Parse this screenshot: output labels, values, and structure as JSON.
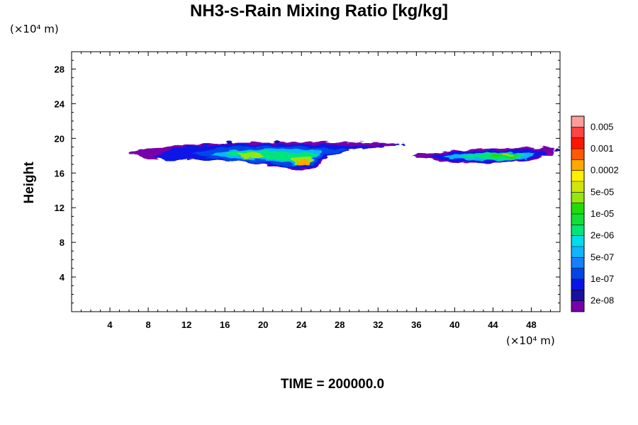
{
  "chart_data": {
    "type": "heatmap",
    "title": "NH3-s-Rain Mixing Ratio [kg/kg]",
    "xunit": "(×10⁴ m)",
    "yunit": "(×10⁴ m)",
    "ylabel": "Height",
    "footer": "TIME = 200000.0",
    "xlim": [
      0,
      51
    ],
    "ylim": [
      0,
      30
    ],
    "xticks": [
      4,
      8,
      12,
      16,
      20,
      24,
      28,
      32,
      36,
      40,
      44,
      48
    ],
    "yticks": [
      4,
      8,
      12,
      16,
      20,
      24,
      28
    ],
    "colorbar": {
      "colors": [
        "#7700aa",
        "#1a10a0",
        "#0a14e6",
        "#0046e6",
        "#1680ff",
        "#10b4ff",
        "#00ddea",
        "#00e57a",
        "#12df36",
        "#22dc0a",
        "#96e610",
        "#d0e60a",
        "#fff000",
        "#ffa800",
        "#ff5a00",
        "#ff1600",
        "#ff4444",
        "#ff9d9d"
      ],
      "labels": [
        "2e-08",
        "1e-07",
        "5e-07",
        "2e-06",
        "1e-05",
        "5e-05",
        "0.0002",
        "0.001",
        "0.005"
      ]
    },
    "regions": [
      {
        "name": "left-cloud",
        "x_range": [
          6,
          34
        ],
        "y_range": [
          16.5,
          19.6
        ],
        "peak_x": 24.3,
        "peak_y": 17.2,
        "max_level": "0.0002"
      },
      {
        "name": "right-cloud",
        "x_range": [
          35,
          51
        ],
        "y_range": [
          17.0,
          19.0
        ],
        "peak_x": 45.5,
        "peak_y": 18.0,
        "max_level": "5e-05"
      }
    ]
  }
}
